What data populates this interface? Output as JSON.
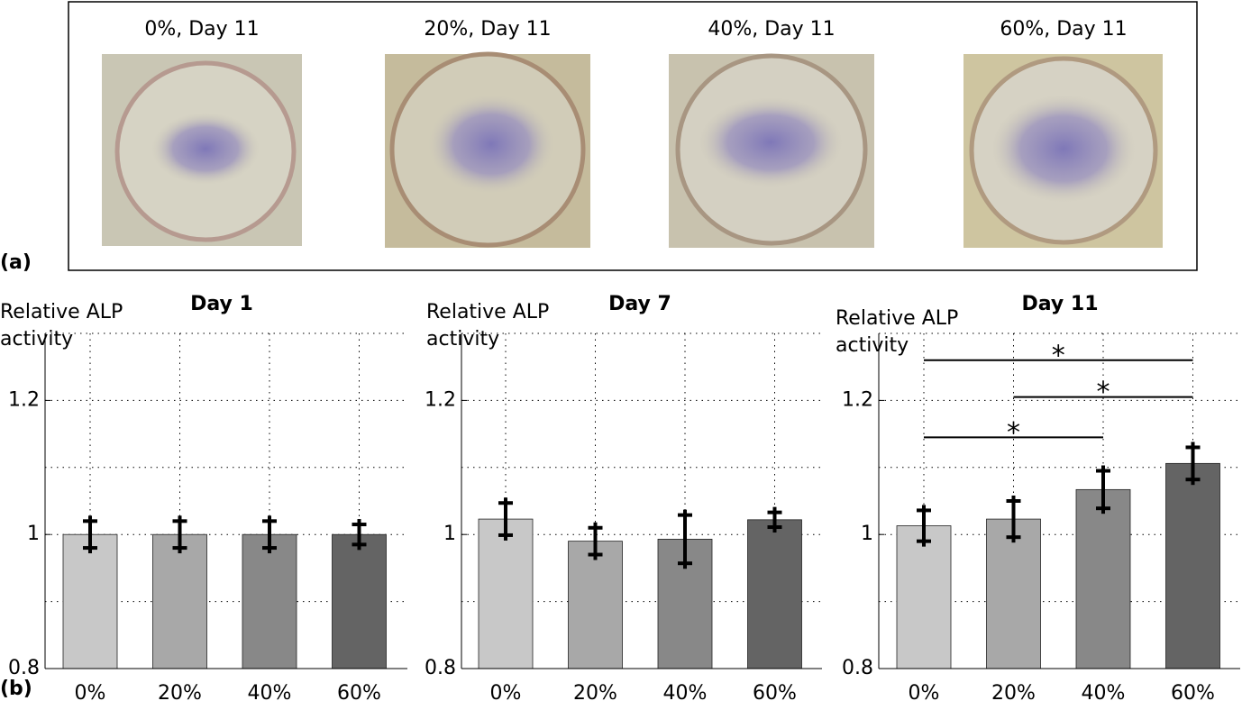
{
  "panel_a": {
    "label": "(a)",
    "images": [
      {
        "title": "0%, Day 11"
      },
      {
        "title": "20%, Day 11"
      },
      {
        "title": "40%, Day 11"
      },
      {
        "title": "60%, Day 11"
      }
    ]
  },
  "panel_b": {
    "label": "(b)"
  },
  "chart_data": [
    {
      "type": "bar",
      "title": "Day 1",
      "ylabel": [
        "Relative ALP",
        "activity"
      ],
      "categories": [
        "0%",
        "20%",
        "40%",
        "60%"
      ],
      "values": [
        1.0,
        1.0,
        1.0,
        1.0
      ],
      "errors": [
        0.02,
        0.02,
        0.02,
        0.015
      ],
      "colors": [
        "#c8c8c8",
        "#a8a8a8",
        "#888888",
        "#646464"
      ],
      "ylim": [
        0.8,
        1.3
      ],
      "yticks": [
        0.8,
        1,
        1.2
      ],
      "ygrid": [
        0.8,
        0.9,
        1,
        1.1,
        1.2,
        1.3
      ],
      "grid": true
    },
    {
      "type": "bar",
      "title": "Day 7",
      "ylabel": [
        "Relative ALP",
        "activity"
      ],
      "categories": [
        "0%",
        "20%",
        "40%",
        "60%"
      ],
      "values": [
        1.023,
        0.99,
        0.993,
        1.022
      ],
      "errors": [
        0.024,
        0.02,
        0.036,
        0.011
      ],
      "colors": [
        "#c8c8c8",
        "#a8a8a8",
        "#888888",
        "#646464"
      ],
      "ylim": [
        0.8,
        1.3
      ],
      "yticks": [
        0.8,
        1,
        1.2
      ],
      "ygrid": [
        0.8,
        0.9,
        1,
        1.1,
        1.2,
        1.3
      ],
      "grid": true
    },
    {
      "type": "bar",
      "title": "Day 11",
      "ylabel": [
        "Relative ALP",
        "activity"
      ],
      "categories": [
        "0%",
        "20%",
        "40%",
        "60%"
      ],
      "values": [
        1.013,
        1.023,
        1.067,
        1.106
      ],
      "errors": [
        0.023,
        0.027,
        0.028,
        0.024
      ],
      "colors": [
        "#c8c8c8",
        "#a8a8a8",
        "#888888",
        "#646464"
      ],
      "ylim": [
        0.8,
        1.3
      ],
      "yticks": [
        0.8,
        1,
        1.2
      ],
      "ygrid": [
        0.8,
        0.9,
        1,
        1.1,
        1.2,
        1.3
      ],
      "grid": true,
      "significance": [
        {
          "from": 0,
          "to": 3,
          "y": 1.26,
          "label": "*"
        },
        {
          "from": 1,
          "to": 3,
          "y": 1.205,
          "label": "*"
        },
        {
          "from": 0,
          "to": 2,
          "y": 1.145,
          "label": "*"
        }
      ]
    }
  ]
}
